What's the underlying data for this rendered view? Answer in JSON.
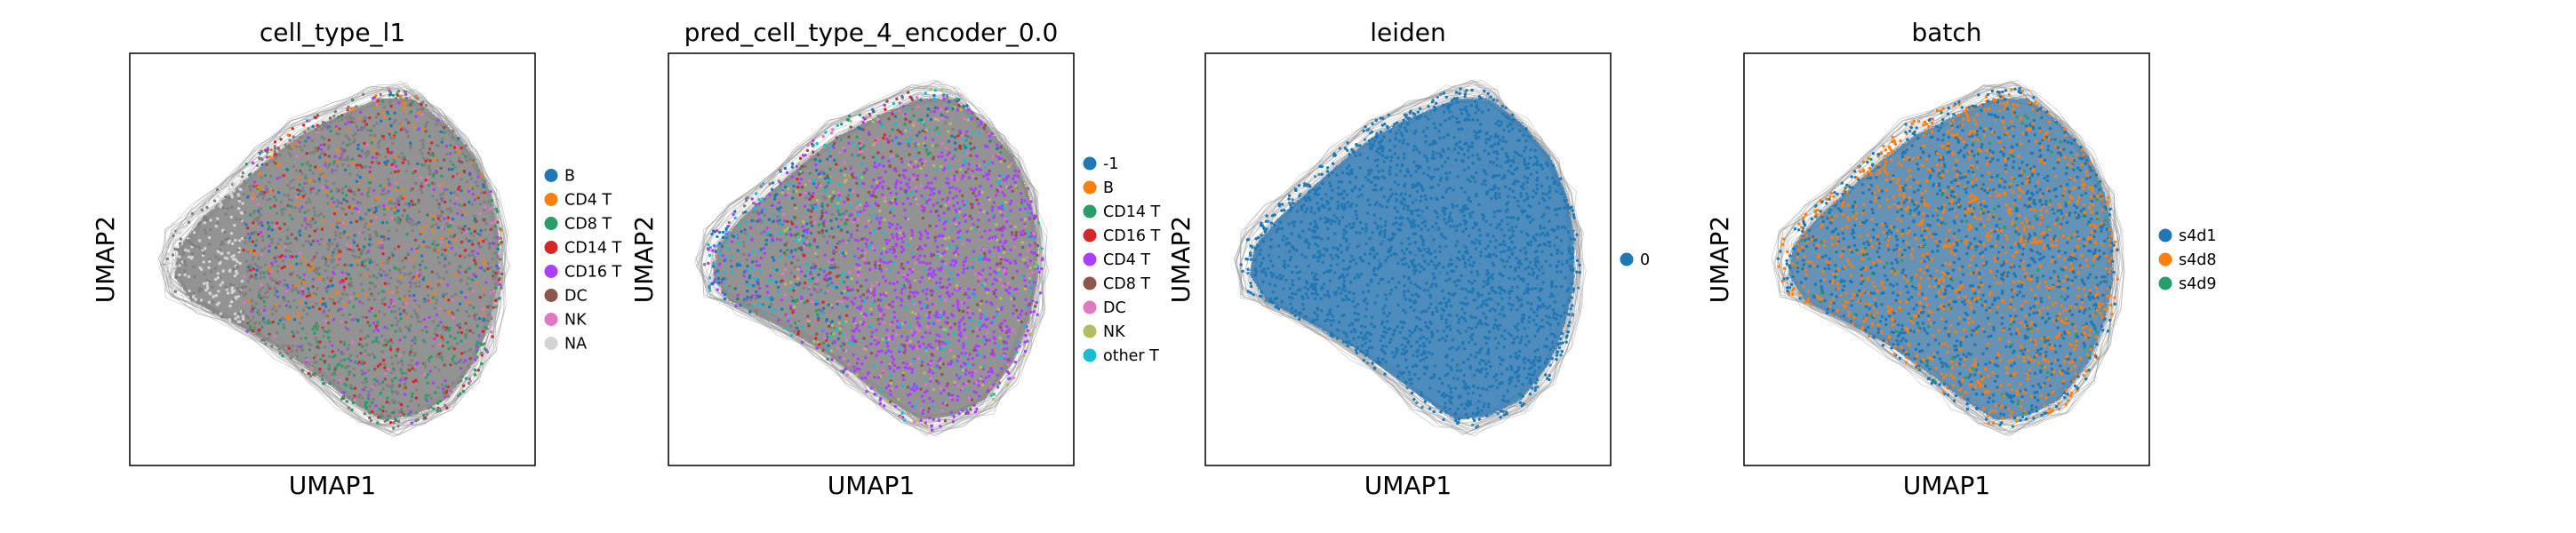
{
  "figure": {
    "type": "umap-embedding-panels"
  },
  "chart_data": [
    {
      "type": "scatter",
      "title": "cell_type_l1",
      "xlabel": "UMAP1",
      "ylabel": "UMAP2",
      "grid": false,
      "legend_position": "right",
      "series": [
        {
          "name": "B",
          "color": "#1f77b4"
        },
        {
          "name": "CD4 T",
          "color": "#ff7f0e"
        },
        {
          "name": "CD8 T",
          "color": "#279e68"
        },
        {
          "name": "CD14 T",
          "color": "#d62728"
        },
        {
          "name": "CD16 T",
          "color": "#aa40fc"
        },
        {
          "name": "DC",
          "color": "#8c564b"
        },
        {
          "name": "NK",
          "color": "#e377c2"
        },
        {
          "name": "NA",
          "color": "#d3d3d3"
        }
      ],
      "background_color": "#7f7f7f"
    },
    {
      "type": "scatter",
      "title": "pred_cell_type_4_encoder_0.0",
      "xlabel": "UMAP1",
      "ylabel": "UMAP2",
      "grid": false,
      "legend_position": "right",
      "series": [
        {
          "name": "-1",
          "color": "#1f77b4"
        },
        {
          "name": "B",
          "color": "#ff7f0e"
        },
        {
          "name": "CD14 T",
          "color": "#279e68"
        },
        {
          "name": "CD16 T",
          "color": "#d62728"
        },
        {
          "name": "CD4 T",
          "color": "#aa40fc"
        },
        {
          "name": "CD8 T",
          "color": "#8c564b"
        },
        {
          "name": "DC",
          "color": "#e377c2"
        },
        {
          "name": "NK",
          "color": "#b5bd61"
        },
        {
          "name": "other T",
          "color": "#17becf"
        }
      ],
      "background_color": "#7f7f7f"
    },
    {
      "type": "scatter",
      "title": "leiden",
      "xlabel": "UMAP1",
      "ylabel": "UMAP2",
      "grid": false,
      "legend_position": "right",
      "series": [
        {
          "name": "0",
          "color": "#1f77b4"
        }
      ],
      "background_color": "#7f7f7f"
    },
    {
      "type": "scatter",
      "title": "batch",
      "xlabel": "UMAP1",
      "ylabel": "UMAP2",
      "grid": false,
      "legend_position": "right",
      "series": [
        {
          "name": "s4d1",
          "color": "#1f77b4"
        },
        {
          "name": "s4d8",
          "color": "#ff7f0e"
        },
        {
          "name": "s4d9",
          "color": "#279e68"
        }
      ],
      "background_color": "#7f7f7f"
    }
  ]
}
